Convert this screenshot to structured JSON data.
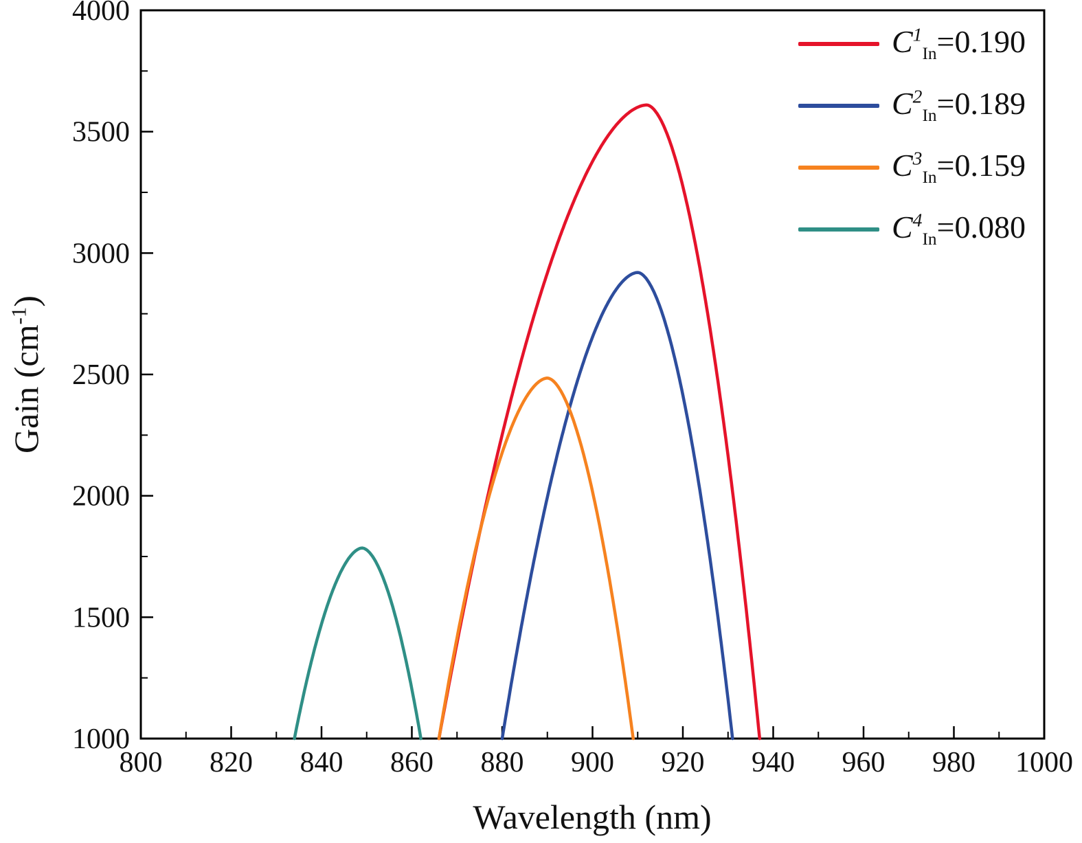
{
  "chart_data": {
    "type": "line",
    "title": "",
    "xlabel": "Wavelength (nm)",
    "ylabel": "Gain (cm-1)",
    "ylabel_parts": {
      "pre": "Gain (cm",
      "sup": "-1",
      "post": ")"
    },
    "xlim": [
      800,
      1000
    ],
    "ylim": [
      1000,
      4000
    ],
    "xticks": [
      800,
      820,
      840,
      860,
      880,
      900,
      920,
      940,
      960,
      980,
      1000
    ],
    "yticks": [
      1000,
      1500,
      2000,
      2500,
      3000,
      3500,
      4000
    ],
    "x_minor_step": 10,
    "y_minor_step": 250,
    "grid": false,
    "legend_position": "top-right",
    "curve_exponent": 1.8,
    "series": [
      {
        "label": {
          "sym": "C",
          "sup": "1",
          "sub": "In",
          "eq": "=0.190"
        },
        "color": "#e5132a",
        "peak": [
          912,
          3610
        ],
        "x_left": 866,
        "x_right": 937,
        "base_y": 1000
      },
      {
        "label": {
          "sym": "C",
          "sup": "2",
          "sub": "In",
          "eq": "=0.189"
        },
        "color": "#2d4d9d",
        "peak": [
          910,
          2920
        ],
        "x_left": 880,
        "x_right": 931,
        "base_y": 1000
      },
      {
        "label": {
          "sym": "C",
          "sup": "3",
          "sub": "In",
          "eq": "=0.159"
        },
        "color": "#f6821f",
        "peak": [
          890,
          2485
        ],
        "x_left": 866,
        "x_right": 909,
        "base_y": 1000
      },
      {
        "label": {
          "sym": "C",
          "sup": "4",
          "sub": "In",
          "eq": "=0.080"
        },
        "color": "#2f8f86",
        "peak": [
          849,
          1785
        ],
        "x_left": 834,
        "x_right": 862,
        "base_y": 1000
      }
    ]
  }
}
